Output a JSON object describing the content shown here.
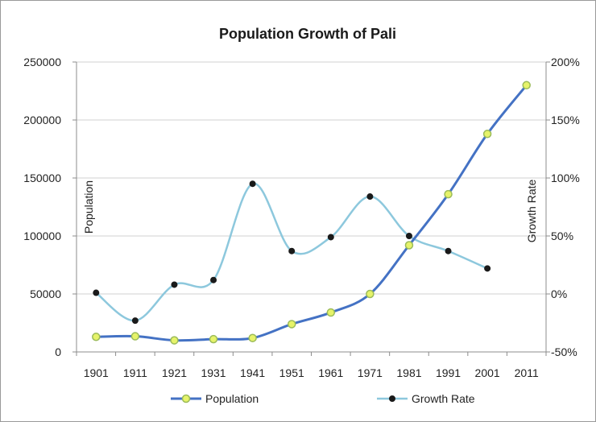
{
  "chart_data": {
    "type": "line",
    "title": "Population Growth of Pali",
    "categories": [
      "1901",
      "1911",
      "1921",
      "1931",
      "1941",
      "1951",
      "1961",
      "1971",
      "1981",
      "1991",
      "2001",
      "2011"
    ],
    "y_left": {
      "label": "Population",
      "min": 0,
      "max": 250000,
      "step": 50000,
      "ticks": [
        "0",
        "50000",
        "100000",
        "150000",
        "200000",
        "250000"
      ]
    },
    "y_right": {
      "label": "Growth Rate",
      "min": -50,
      "max": 200,
      "step": 50,
      "ticks": [
        "-50%",
        "0%",
        "50%",
        "100%",
        "150%",
        "200%"
      ]
    },
    "series": [
      {
        "name": "Population",
        "axis": "left",
        "line_color": "#4472C4",
        "marker_fill": "#E6F36A",
        "marker_stroke": "#9BBB59",
        "values": [
          13000,
          13500,
          10000,
          11000,
          12000,
          24000,
          34000,
          50000,
          92000,
          136000,
          188000,
          230000
        ]
      },
      {
        "name": "Growth Rate",
        "axis": "right",
        "line_color": "#8DC8DD",
        "marker_fill": "#1a1a1a",
        "marker_stroke": "#1a1a1a",
        "values": [
          1,
          -23,
          8,
          12,
          95,
          37,
          49,
          84,
          50,
          37,
          22,
          null
        ]
      }
    ],
    "grid": true,
    "legend_position": "bottom"
  }
}
